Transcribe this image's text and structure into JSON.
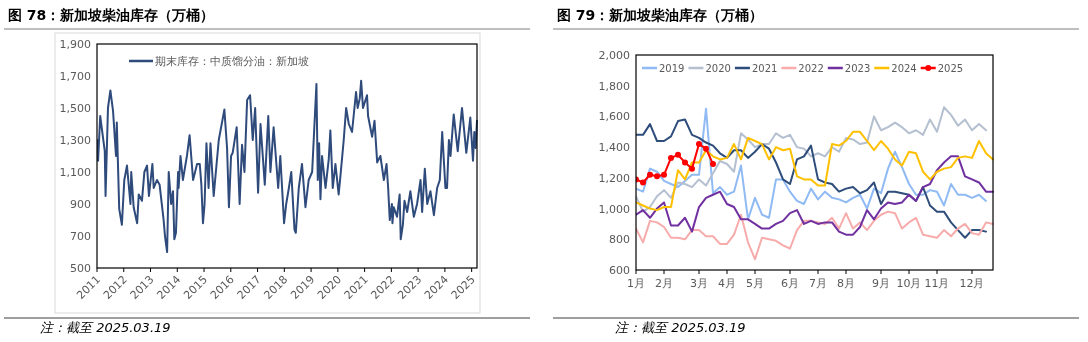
{
  "chart_data": [
    {
      "type": "line",
      "title": "图 78：新加坡柴油库存（万桶）",
      "legend": "top left",
      "xlim": [
        2011,
        2025.2
      ],
      "xticks": [
        2011,
        2012,
        2013,
        2014,
        2015,
        2016,
        2017,
        2018,
        2019,
        2020,
        2021,
        2022,
        2023,
        2024,
        2025
      ],
      "ylim": [
        500,
        1900
      ],
      "yticks": [
        500,
        700,
        900,
        {
          "value": 1100,
          "label": "1,100"
        },
        {
          "value": 1300,
          "label": "1,300"
        },
        {
          "value": 1500,
          "label": "1,500"
        },
        {
          "value": 1700,
          "label": "1,700"
        },
        {
          "value": 1900,
          "label": "1,900"
        }
      ],
      "annotations": [
        "注：截至 2025.03.19"
      ],
      "series": [
        {
          "name": "期末库存：中质馏分油：新加坡",
          "color": "#2f4b7c",
          "x": [
            2011.0,
            2011.04,
            2011.12,
            2011.29,
            2011.32,
            2011.41,
            2011.5,
            2011.6,
            2011.71,
            2011.74,
            2011.83,
            2011.93,
            2012.02,
            2012.12,
            2012.25,
            2012.28,
            2012.37,
            2012.5,
            2012.56,
            2012.68,
            2012.77,
            2012.87,
            2012.94,
            2013.07,
            2013.12,
            2013.24,
            2013.34,
            2013.4,
            2013.49,
            2013.54,
            2013.62,
            2013.68,
            2013.77,
            2013.84,
            2013.89,
            2013.95,
            2014.03,
            2014.05,
            2014.12,
            2014.21,
            2014.36,
            2014.46,
            2014.59,
            2014.74,
            2014.84,
            2014.9,
            2014.96,
            2015.02,
            2015.09,
            2015.17,
            2015.24,
            2015.36,
            2015.55,
            2015.76,
            2015.86,
            2015.93,
            2016.01,
            2016.07,
            2016.22,
            2016.33,
            2016.42,
            2016.51,
            2016.61,
            2016.72,
            2016.82,
            2016.91,
            2017.02,
            2017.11,
            2017.27,
            2017.4,
            2017.48,
            2017.6,
            2017.77,
            2017.85,
            2017.99,
            2018.07,
            2018.17,
            2018.26,
            2018.38,
            2018.43,
            2018.54,
            2018.66,
            2018.79,
            2018.91,
            2019.04,
            2019.2,
            2019.25,
            2019.3,
            2019.35,
            2019.41,
            2019.54,
            2019.66,
            2019.72,
            2019.81,
            2019.91,
            2020.03,
            2020.1,
            2020.22,
            2020.31,
            2020.41,
            2020.53,
            2020.68,
            2020.74,
            2020.82,
            2020.87,
            2020.94,
            2021.09,
            2021.13,
            2021.28,
            2021.37,
            2021.47,
            2021.59,
            2021.72,
            2021.82,
            2021.88,
            2021.94,
            2022.02,
            2022.04,
            2022.09,
            2022.21,
            2022.31,
            2022.35,
            2022.43,
            2022.49,
            2022.59,
            2022.71,
            2022.84,
            2022.96,
            2023.09,
            2023.15,
            2023.25,
            2023.34,
            2023.46,
            2023.59,
            2023.71,
            2023.81,
            2023.9,
            2024.02,
            2024.08,
            2024.15,
            2024.21,
            2024.33,
            2024.48,
            2024.64,
            2024.8,
            2024.95,
            2025.05,
            2025.1,
            2025.15,
            2025.2
          ],
          "values": [
            1300,
            1170,
            1450,
            1230,
            950,
            1500,
            1610,
            1480,
            1200,
            1410,
            870,
            770,
            1050,
            1140,
            900,
            1100,
            880,
            780,
            960,
            920,
            1100,
            1140,
            950,
            1150,
            1000,
            1050,
            1020,
            930,
            800,
            700,
            600,
            1100,
            900,
            980,
            680,
            720,
            1100,
            1000,
            1200,
            1050,
            1200,
            1330,
            1050,
            1150,
            1150,
            1020,
            780,
            900,
            1280,
            1000,
            1280,
            950,
            1300,
            1490,
            1250,
            880,
            1200,
            1220,
            1380,
            900,
            1270,
            1100,
            1550,
            1580,
            1300,
            1500,
            970,
            1400,
            1020,
            1450,
            1100,
            1380,
            1000,
            1200,
            780,
            900,
            1000,
            1100,
            740,
            720,
            1000,
            1150,
            880,
            1050,
            1100,
            1650,
            1050,
            1280,
            930,
            1200,
            1000,
            1180,
            1360,
            1000,
            1150,
            960,
            1080,
            1300,
            1500,
            1400,
            1350,
            1600,
            1500,
            1560,
            1670,
            1500,
            1580,
            1450,
            1320,
            1420,
            1160,
            1200,
            1050,
            1150,
            1000,
            800,
            900,
            780,
            880,
            820,
            960,
            680,
            770,
            920,
            850,
            980,
            820,
            900,
            1050,
            850,
            1120,
            900,
            980,
            830,
            1000,
            1050,
            1350,
            1000,
            1000,
            1300,
            1200,
            1460,
            1230,
            1500,
            1220,
            1440,
            1170,
            1350,
            1250,
            1420
          ]
        }
      ]
    },
    {
      "type": "line",
      "title": "图 79：新加坡柴油库存（万桶）",
      "legend": "top",
      "categories": [
        "1月",
        null,
        null,
        null,
        "2月",
        null,
        null,
        null,
        null,
        "3月",
        null,
        null,
        null,
        "4月",
        null,
        null,
        null,
        "5月",
        null,
        null,
        null,
        null,
        "6月",
        null,
        null,
        null,
        "7月",
        null,
        null,
        null,
        "8月",
        null,
        null,
        null,
        null,
        "9月",
        null,
        null,
        null,
        "10月",
        null,
        null,
        null,
        "11月",
        null,
        null,
        null,
        null,
        "12月",
        null,
        null,
        null
      ],
      "ylim": [
        600,
        2000
      ],
      "yticks": [
        600,
        800,
        {
          "value": 1000,
          "label": "1,000"
        },
        {
          "value": 1200,
          "label": "1,200"
        },
        {
          "value": 1400,
          "label": "1,400"
        },
        {
          "value": 1600,
          "label": "1,600"
        },
        {
          "value": 1800,
          "label": "1,800"
        },
        {
          "value": 2000,
          "label": "2,000"
        }
      ],
      "annotations": [
        "注：截至 2025.03.19"
      ],
      "series": [
        {
          "name": "2019",
          "color": "#8fbaf3",
          "values": [
            1130,
            1110,
            1260,
            1240,
            1180,
            1160,
            1140,
            1180,
            1220,
            1220,
            1650,
            1100,
            1140,
            1090,
            1110,
            1280,
            930,
            1070,
            960,
            940,
            1190,
            1190,
            1110,
            1050,
            1030,
            1130,
            1060,
            1110,
            1070,
            1060,
            1040,
            1070,
            1090,
            1000,
            1130,
            1100,
            1260,
            1370,
            1270,
            1160,
            1090,
            1090,
            1120,
            1110,
            1020,
            1160,
            1090,
            1090,
            1070,
            1090,
            1050,
            null
          ]
        },
        {
          "name": "2020",
          "color": "#b4bfd0",
          "values": [
            1080,
            980,
            1010,
            1080,
            1120,
            1070,
            1170,
            1160,
            1140,
            1190,
            1150,
            1230,
            1310,
            1290,
            1240,
            1490,
            1450,
            1400,
            1420,
            1420,
            1490,
            1460,
            1480,
            1400,
            1390,
            1340,
            1360,
            1340,
            1400,
            1370,
            1460,
            1450,
            1420,
            1430,
            1600,
            1510,
            1530,
            1560,
            1530,
            1490,
            1510,
            1480,
            1580,
            1500,
            1660,
            1610,
            1540,
            1580,
            1510,
            1550,
            1510,
            null
          ]
        },
        {
          "name": "2021",
          "color": "#2e4d7a",
          "values": [
            1480,
            1480,
            1550,
            1440,
            1440,
            1470,
            1570,
            1580,
            1480,
            1460,
            1430,
            1410,
            1360,
            1330,
            1380,
            1380,
            1330,
            1370,
            1420,
            1390,
            1300,
            1190,
            1160,
            1320,
            1340,
            1410,
            1190,
            1170,
            1160,
            1110,
            1130,
            1140,
            1100,
            1120,
            1170,
            1030,
            1110,
            1110,
            1100,
            1090,
            1050,
            1140,
            1020,
            980,
            980,
            910,
            860,
            810,
            860,
            860,
            850,
            null
          ]
        },
        {
          "name": "2022",
          "color": "#f7abab",
          "values": [
            870,
            780,
            920,
            910,
            880,
            810,
            810,
            800,
            860,
            860,
            820,
            820,
            770,
            770,
            830,
            960,
            780,
            670,
            810,
            800,
            790,
            760,
            740,
            860,
            920,
            920,
            910,
            900,
            940,
            870,
            970,
            870,
            910,
            860,
            920,
            960,
            980,
            970,
            870,
            910,
            940,
            830,
            820,
            810,
            860,
            820,
            870,
            900,
            840,
            830,
            910,
            900
          ]
        },
        {
          "name": "2023",
          "color": "#7030a0",
          "values": [
            960,
            990,
            940,
            1000,
            1040,
            890,
            890,
            940,
            850,
            1010,
            1070,
            1090,
            1110,
            1030,
            1010,
            930,
            930,
            900,
            870,
            870,
            900,
            920,
            970,
            990,
            900,
            920,
            900,
            910,
            910,
            850,
            830,
            830,
            880,
            990,
            930,
            1000,
            1040,
            1030,
            1040,
            1090,
            1050,
            1140,
            1160,
            1250,
            1300,
            1340,
            1340,
            1210,
            1190,
            1170,
            1110,
            1110
          ]
        },
        {
          "name": "2024",
          "color": "#ffc000",
          "values": [
            1040,
            1020,
            1000,
            990,
            1010,
            1010,
            1250,
            1190,
            1300,
            1300,
            1380,
            1340,
            1320,
            1330,
            1420,
            1320,
            1460,
            1440,
            1420,
            1320,
            1400,
            1380,
            1390,
            1210,
            1190,
            1190,
            1150,
            1150,
            1420,
            1410,
            1440,
            1500,
            1500,
            1440,
            1380,
            1440,
            1390,
            1320,
            1280,
            1370,
            1360,
            1240,
            1190,
            1240,
            1260,
            1270,
            1330,
            1340,
            1330,
            1440,
            1360,
            1320
          ]
        },
        {
          "name": "2025",
          "color": "#ff0000",
          "marker": "circle",
          "values": [
            1190,
            1170,
            1220,
            1210,
            1220,
            1330,
            1350,
            1300,
            1260,
            1420,
            1390,
            1290,
            null,
            null,
            null,
            null,
            null,
            null,
            null,
            null,
            null,
            null,
            null,
            null,
            null,
            null,
            null,
            null,
            null,
            null,
            null,
            null,
            null,
            null,
            null,
            null,
            null,
            null,
            null,
            null,
            null,
            null,
            null,
            null,
            null,
            null,
            null,
            null,
            null,
            null,
            null,
            null
          ]
        }
      ]
    }
  ]
}
